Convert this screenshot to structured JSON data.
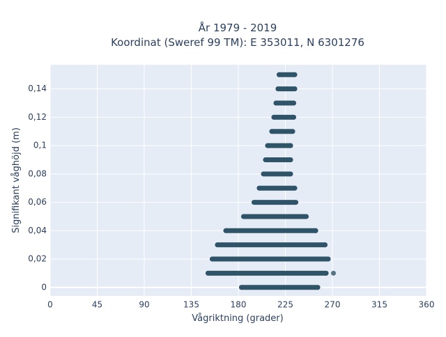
{
  "chart_data": {
    "type": "scatter",
    "title_line1": "År 1979 - 2019",
    "title_line2": "Koordinat (Sweref 99 TM): E 353011, N 6301276",
    "xlabel": "Vågriktning (grader)",
    "ylabel": "Signifikant våghöjd (m)",
    "xlim": [
      0,
      360
    ],
    "ylim": [
      -0.006,
      0.157
    ],
    "x_ticks": [
      0,
      45,
      90,
      135,
      180,
      225,
      270,
      315,
      360
    ],
    "x_tick_labels": [
      "0",
      "45",
      "90",
      "135",
      "180",
      "225",
      "270",
      "315",
      "360"
    ],
    "y_ticks": [
      0,
      0.02,
      0.04,
      0.06,
      0.08,
      0.1,
      0.12,
      0.14
    ],
    "y_tick_labels": [
      "0",
      "0,02",
      "0,04",
      "0,06",
      "0,08",
      "0,1",
      "0,12",
      "0,14"
    ],
    "grid": true,
    "marker_color": "#2f5468",
    "background_color": "#e5ecf6",
    "series": [
      {
        "bands": [
          {
            "y": 0.0,
            "x_min": 183,
            "x_max": 256
          },
          {
            "y": 0.01,
            "x_min": 151,
            "x_max": 264
          },
          {
            "y": 0.02,
            "x_min": 155,
            "x_max": 266
          },
          {
            "y": 0.03,
            "x_min": 160,
            "x_max": 263
          },
          {
            "y": 0.04,
            "x_min": 168,
            "x_max": 254
          },
          {
            "y": 0.05,
            "x_min": 185,
            "x_max": 245
          },
          {
            "y": 0.06,
            "x_min": 195,
            "x_max": 235
          },
          {
            "y": 0.07,
            "x_min": 200,
            "x_max": 234
          },
          {
            "y": 0.08,
            "x_min": 204,
            "x_max": 230
          },
          {
            "y": 0.09,
            "x_min": 206,
            "x_max": 230
          },
          {
            "y": 0.1,
            "x_min": 208,
            "x_max": 230
          },
          {
            "y": 0.11,
            "x_min": 212,
            "x_max": 232
          },
          {
            "y": 0.12,
            "x_min": 214,
            "x_max": 233
          },
          {
            "y": 0.13,
            "x_min": 216,
            "x_max": 233
          },
          {
            "y": 0.14,
            "x_min": 218,
            "x_max": 234
          },
          {
            "y": 0.15,
            "x_min": 219,
            "x_max": 234
          }
        ],
        "points": [
          {
            "x": 271,
            "y": 0.01
          },
          {
            "x": 254,
            "y": 0.04
          }
        ]
      }
    ]
  }
}
